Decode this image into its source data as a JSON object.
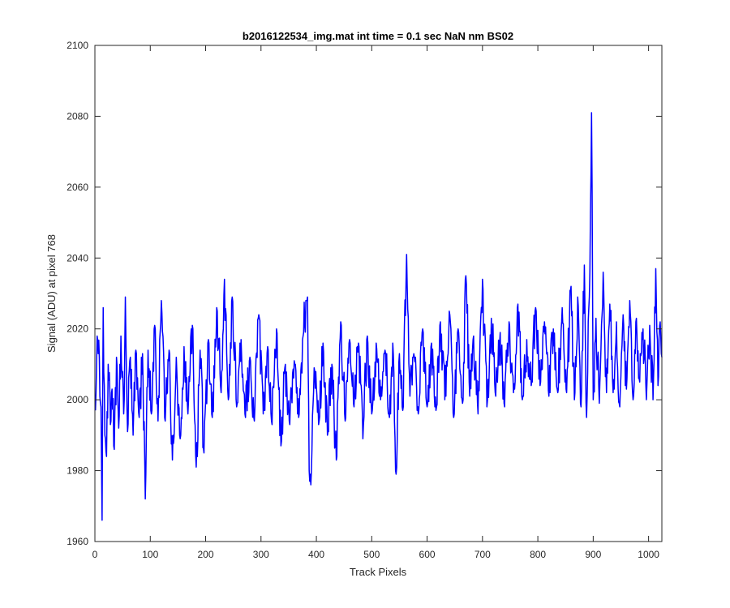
{
  "chart_data": {
    "type": "line",
    "title": "b2016122534_img.mat int time = 0.1 sec  NaN nm BS02",
    "xlabel": "Track Pixels",
    "ylabel": "Signal (ADU) at pixel 768",
    "xlim": [
      0,
      1024
    ],
    "ylim": [
      1960,
      2100
    ],
    "xticks": [
      0,
      100,
      200,
      300,
      400,
      500,
      600,
      700,
      800,
      900,
      1000
    ],
    "yticks": [
      1960,
      1980,
      2000,
      2020,
      2040,
      2060,
      2080,
      2100
    ],
    "grid": false,
    "box": true,
    "line_color": "#0000ff",
    "series_peaks": [
      {
        "x": 1,
        "y": 1997
      },
      {
        "x": 4,
        "y": 2018
      },
      {
        "x": 8,
        "y": 2012
      },
      {
        "x": 11,
        "y": 1998
      },
      {
        "x": 13,
        "y": 1966
      },
      {
        "x": 15,
        "y": 2026
      },
      {
        "x": 18,
        "y": 1990
      },
      {
        "x": 21,
        "y": 1984
      },
      {
        "x": 24,
        "y": 2010
      },
      {
        "x": 28,
        "y": 1993
      },
      {
        "x": 31,
        "y": 2003
      },
      {
        "x": 35,
        "y": 1986
      },
      {
        "x": 39,
        "y": 2012
      },
      {
        "x": 43,
        "y": 1992
      },
      {
        "x": 47,
        "y": 2018
      },
      {
        "x": 52,
        "y": 1996
      },
      {
        "x": 55,
        "y": 2029
      },
      {
        "x": 59,
        "y": 1991
      },
      {
        "x": 64,
        "y": 2012
      },
      {
        "x": 69,
        "y": 1990
      },
      {
        "x": 74,
        "y": 2014
      },
      {
        "x": 80,
        "y": 1995
      },
      {
        "x": 86,
        "y": 2013
      },
      {
        "x": 91,
        "y": 1972
      },
      {
        "x": 96,
        "y": 2014
      },
      {
        "x": 102,
        "y": 1996
      },
      {
        "x": 108,
        "y": 2021
      },
      {
        "x": 114,
        "y": 1994
      },
      {
        "x": 120,
        "y": 2028
      },
      {
        "x": 127,
        "y": 1994
      },
      {
        "x": 134,
        "y": 2014
      },
      {
        "x": 140,
        "y": 1983
      },
      {
        "x": 147,
        "y": 2012
      },
      {
        "x": 154,
        "y": 1989
      },
      {
        "x": 161,
        "y": 2015
      },
      {
        "x": 168,
        "y": 1996
      },
      {
        "x": 176,
        "y": 2021
      },
      {
        "x": 183,
        "y": 1981
      },
      {
        "x": 190,
        "y": 2014
      },
      {
        "x": 197,
        "y": 1985
      },
      {
        "x": 205,
        "y": 2017
      },
      {
        "x": 212,
        "y": 1995
      },
      {
        "x": 220,
        "y": 2026
      },
      {
        "x": 228,
        "y": 2002
      },
      {
        "x": 234,
        "y": 2034
      },
      {
        "x": 241,
        "y": 2000
      },
      {
        "x": 248,
        "y": 2029
      },
      {
        "x": 256,
        "y": 1998
      },
      {
        "x": 264,
        "y": 2017
      },
      {
        "x": 272,
        "y": 1995
      },
      {
        "x": 280,
        "y": 2012
      },
      {
        "x": 288,
        "y": 1994
      },
      {
        "x": 296,
        "y": 2024
      },
      {
        "x": 304,
        "y": 1996
      },
      {
        "x": 312,
        "y": 2015
      },
      {
        "x": 320,
        "y": 1993
      },
      {
        "x": 328,
        "y": 2020
      },
      {
        "x": 336,
        "y": 1987
      },
      {
        "x": 344,
        "y": 2010
      },
      {
        "x": 352,
        "y": 1993
      },
      {
        "x": 360,
        "y": 2011
      },
      {
        "x": 368,
        "y": 1995
      },
      {
        "x": 376,
        "y": 2018
      },
      {
        "x": 384,
        "y": 2029
      },
      {
        "x": 387,
        "y": 1980
      },
      {
        "x": 390,
        "y": 1976
      },
      {
        "x": 396,
        "y": 2009
      },
      {
        "x": 404,
        "y": 1993
      },
      {
        "x": 412,
        "y": 2016
      },
      {
        "x": 420,
        "y": 1990
      },
      {
        "x": 428,
        "y": 2010
      },
      {
        "x": 436,
        "y": 1983
      },
      {
        "x": 444,
        "y": 2022
      },
      {
        "x": 452,
        "y": 1994
      },
      {
        "x": 460,
        "y": 2017
      },
      {
        "x": 468,
        "y": 1998
      },
      {
        "x": 476,
        "y": 2016
      },
      {
        "x": 484,
        "y": 1989
      },
      {
        "x": 492,
        "y": 2018
      },
      {
        "x": 500,
        "y": 1996
      },
      {
        "x": 508,
        "y": 2016
      },
      {
        "x": 516,
        "y": 2000
      },
      {
        "x": 524,
        "y": 2014
      },
      {
        "x": 532,
        "y": 1995
      },
      {
        "x": 538,
        "y": 2016
      },
      {
        "x": 544,
        "y": 1979
      },
      {
        "x": 550,
        "y": 2013
      },
      {
        "x": 556,
        "y": 1997
      },
      {
        "x": 563,
        "y": 2041
      },
      {
        "x": 569,
        "y": 2001
      },
      {
        "x": 576,
        "y": 2013
      },
      {
        "x": 584,
        "y": 1996
      },
      {
        "x": 592,
        "y": 2020
      },
      {
        "x": 600,
        "y": 1998
      },
      {
        "x": 608,
        "y": 2016
      },
      {
        "x": 616,
        "y": 1997
      },
      {
        "x": 624,
        "y": 2022
      },
      {
        "x": 632,
        "y": 2000
      },
      {
        "x": 640,
        "y": 2025
      },
      {
        "x": 648,
        "y": 1995
      },
      {
        "x": 656,
        "y": 2020
      },
      {
        "x": 664,
        "y": 1999
      },
      {
        "x": 670,
        "y": 2035
      },
      {
        "x": 677,
        "y": 2001
      },
      {
        "x": 684,
        "y": 2018
      },
      {
        "x": 692,
        "y": 1996
      },
      {
        "x": 700,
        "y": 2034
      },
      {
        "x": 708,
        "y": 1998
      },
      {
        "x": 716,
        "y": 2023
      },
      {
        "x": 724,
        "y": 2001
      },
      {
        "x": 732,
        "y": 2019
      },
      {
        "x": 740,
        "y": 1998
      },
      {
        "x": 748,
        "y": 2022
      },
      {
        "x": 756,
        "y": 2002
      },
      {
        "x": 764,
        "y": 2027
      },
      {
        "x": 772,
        "y": 2000
      },
      {
        "x": 780,
        "y": 2017
      },
      {
        "x": 788,
        "y": 2004
      },
      {
        "x": 796,
        "y": 2026
      },
      {
        "x": 804,
        "y": 2004
      },
      {
        "x": 812,
        "y": 2022
      },
      {
        "x": 820,
        "y": 2001
      },
      {
        "x": 828,
        "y": 2020
      },
      {
        "x": 836,
        "y": 2002
      },
      {
        "x": 844,
        "y": 2026
      },
      {
        "x": 852,
        "y": 2002
      },
      {
        "x": 860,
        "y": 2032
      },
      {
        "x": 866,
        "y": 2000
      },
      {
        "x": 872,
        "y": 2029
      },
      {
        "x": 878,
        "y": 1998
      },
      {
        "x": 884,
        "y": 2038
      },
      {
        "x": 888,
        "y": 1995
      },
      {
        "x": 893,
        "y": 2029
      },
      {
        "x": 897,
        "y": 2081
      },
      {
        "x": 900,
        "y": 2000
      },
      {
        "x": 905,
        "y": 2023
      },
      {
        "x": 911,
        "y": 1999
      },
      {
        "x": 918,
        "y": 2036
      },
      {
        "x": 924,
        "y": 2002
      },
      {
        "x": 930,
        "y": 2027
      },
      {
        "x": 936,
        "y": 2002
      },
      {
        "x": 942,
        "y": 2022
      },
      {
        "x": 948,
        "y": 1998
      },
      {
        "x": 954,
        "y": 2024
      },
      {
        "x": 960,
        "y": 2003
      },
      {
        "x": 966,
        "y": 2028
      },
      {
        "x": 972,
        "y": 2000
      },
      {
        "x": 978,
        "y": 2023
      },
      {
        "x": 984,
        "y": 2005
      },
      {
        "x": 990,
        "y": 2020
      },
      {
        "x": 996,
        "y": 2000
      },
      {
        "x": 1002,
        "y": 2021
      },
      {
        "x": 1008,
        "y": 2000
      },
      {
        "x": 1013,
        "y": 2037
      },
      {
        "x": 1017,
        "y": 2004
      },
      {
        "x": 1021,
        "y": 2022
      },
      {
        "x": 1024,
        "y": 2012
      }
    ]
  }
}
